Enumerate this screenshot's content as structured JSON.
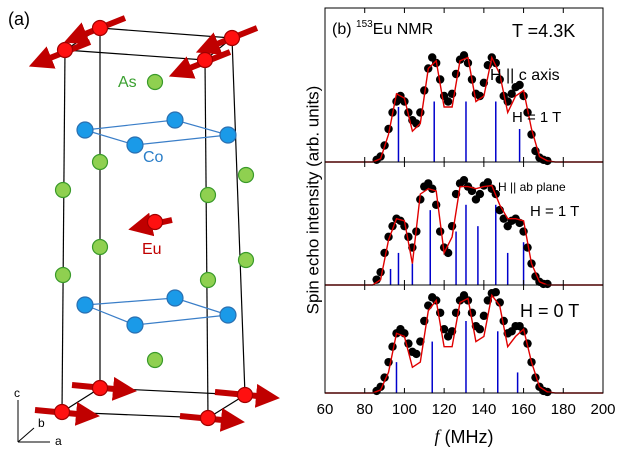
{
  "structure": {
    "panel_label": "(a)",
    "atoms": [
      "As",
      "Co",
      "Eu"
    ],
    "axes": [
      "a",
      "b",
      "c"
    ]
  },
  "chart_data": {
    "type": "scatter",
    "panel_label": "(b)",
    "isotope": "153",
    "nucleus": "Eu NMR",
    "temperature": "T =4.3K",
    "x_label_symbol": "f",
    "x_label_unit": "(MHz)",
    "y_label": "Spin echo intensity (arb. units)",
    "xlim": [
      60,
      200
    ],
    "xticks": [
      60,
      80,
      100,
      120,
      140,
      160,
      180,
      200
    ],
    "dot_color": "#000000",
    "fit_color": "#e00000",
    "stick_color": "#0000cc",
    "x": [
      86,
      88,
      90,
      92,
      94,
      96,
      98,
      100,
      102,
      104,
      106,
      108,
      110,
      112,
      114,
      116,
      118,
      120,
      122,
      124,
      126,
      128,
      130,
      132,
      134,
      136,
      138,
      140,
      142,
      144,
      146,
      148,
      150,
      152,
      154,
      156,
      158,
      160,
      162,
      164,
      166,
      168,
      170,
      172
    ],
    "fit_x": [
      60,
      84,
      88,
      92,
      96,
      100,
      104,
      108,
      112,
      116,
      120,
      124,
      128,
      132,
      136,
      140,
      144,
      148,
      152,
      156,
      160,
      164,
      168,
      172,
      176,
      200
    ],
    "panels": [
      {
        "field_direction": "H || c axis",
        "field": "H = 1 T",
        "ylim": [
          0,
          1.4
        ],
        "values": [
          0.02,
          0.05,
          0.15,
          0.3,
          0.45,
          0.55,
          0.6,
          0.55,
          0.45,
          0.38,
          0.35,
          0.45,
          0.65,
          0.85,
          0.95,
          0.9,
          0.75,
          0.6,
          0.55,
          0.62,
          0.8,
          0.93,
          0.97,
          0.9,
          0.75,
          0.62,
          0.6,
          0.72,
          0.88,
          0.95,
          0.9,
          0.75,
          0.6,
          0.55,
          0.62,
          0.68,
          0.7,
          0.6,
          0.45,
          0.25,
          0.1,
          0.04,
          0.02,
          0.01
        ],
        "fit_values": [
          0,
          0,
          0.03,
          0.25,
          0.62,
          0.58,
          0.28,
          0.35,
          0.85,
          0.92,
          0.5,
          0.5,
          0.92,
          0.95,
          0.55,
          0.6,
          0.95,
          0.8,
          0.45,
          0.6,
          0.65,
          0.3,
          0.05,
          0.01,
          0,
          0
        ],
        "stick_x": [
          97,
          115,
          131,
          146,
          158
        ],
        "stick_values": [
          0.5,
          0.55,
          0.55,
          0.55,
          0.3
        ]
      },
      {
        "field_direction": "H || ab plane",
        "field": "H = 1 T",
        "ylim": [
          0,
          1.15
        ],
        "values": [
          0.05,
          0.12,
          0.3,
          0.45,
          0.55,
          0.62,
          0.6,
          0.55,
          0.45,
          0.35,
          0.5,
          0.8,
          0.92,
          0.95,
          0.9,
          0.75,
          0.5,
          0.35,
          0.3,
          0.55,
          0.85,
          0.95,
          0.98,
          0.92,
          0.88,
          0.8,
          0.85,
          0.93,
          0.96,
          0.9,
          0.85,
          0.7,
          0.62,
          0.55,
          0.6,
          0.62,
          0.58,
          0.5,
          0.35,
          0.2,
          0.08,
          0.03,
          0.01,
          0.01
        ],
        "fit_values": [
          0,
          0,
          0.05,
          0.42,
          0.62,
          0.6,
          0.2,
          0.85,
          0.9,
          0.88,
          0.3,
          0.45,
          0.92,
          0.92,
          0.9,
          0.92,
          0.93,
          0.75,
          0.62,
          0.62,
          0.6,
          0.2,
          0.03,
          0,
          0,
          0
        ],
        "stick_x": [
          93,
          97,
          104,
          113,
          126,
          131,
          137,
          146,
          152,
          160
        ],
        "stick_values": [
          0.15,
          0.3,
          0.2,
          0.7,
          0.5,
          0.75,
          0.55,
          0.75,
          0.3,
          0.4
        ]
      },
      {
        "field_direction": "",
        "field": "H = 0 T",
        "ylim": [
          0,
          1.05
        ],
        "values": [
          0.02,
          0.06,
          0.15,
          0.3,
          0.45,
          0.58,
          0.62,
          0.58,
          0.48,
          0.4,
          0.38,
          0.5,
          0.7,
          0.85,
          0.93,
          0.9,
          0.78,
          0.62,
          0.55,
          0.6,
          0.78,
          0.9,
          0.95,
          0.9,
          0.78,
          0.65,
          0.62,
          0.75,
          0.9,
          0.97,
          0.98,
          0.88,
          0.7,
          0.58,
          0.6,
          0.65,
          0.65,
          0.6,
          0.48,
          0.3,
          0.15,
          0.06,
          0.02,
          0.01
        ],
        "fit_values": [
          0,
          0,
          0.03,
          0.2,
          0.58,
          0.55,
          0.25,
          0.3,
          0.8,
          0.9,
          0.45,
          0.45,
          0.88,
          0.92,
          0.5,
          0.55,
          0.95,
          0.85,
          0.45,
          0.55,
          0.62,
          0.3,
          0.06,
          0.01,
          0,
          0
        ],
        "stick_x": [
          96,
          114,
          131,
          147,
          157
        ],
        "stick_values": [
          0.3,
          0.5,
          0.7,
          0.6,
          0.2
        ]
      }
    ]
  }
}
